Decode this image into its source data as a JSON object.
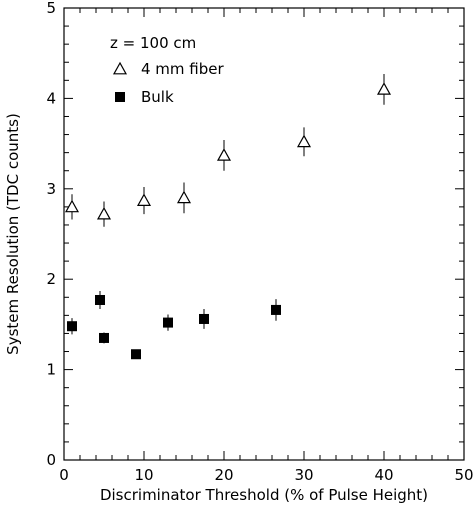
{
  "chart_data": {
    "type": "scatter",
    "xlabel": "Discriminator Threshold (% of Pulse Height)",
    "ylabel": "System Resolution (TDC counts)",
    "xlim": [
      0,
      50
    ],
    "ylim": [
      0,
      5
    ],
    "xticks": [
      0,
      10,
      20,
      30,
      40,
      50
    ],
    "yticks": [
      0,
      1,
      2,
      3,
      4,
      5
    ],
    "grid": false,
    "legend_position": "top-left",
    "annotation": "z = 100 cm",
    "series": [
      {
        "name": "4 mm fiber",
        "marker": "open-triangle",
        "x": [
          1,
          5,
          10,
          15,
          20,
          30,
          40
        ],
        "y": [
          2.8,
          2.72,
          2.87,
          2.9,
          3.37,
          3.52,
          4.1
        ],
        "err": [
          0.14,
          0.14,
          0.15,
          0.17,
          0.17,
          0.16,
          0.17
        ]
      },
      {
        "name": "Bulk",
        "marker": "filled-square",
        "x": [
          1,
          4.5,
          5,
          9,
          13,
          17.5,
          26.5
        ],
        "y": [
          1.48,
          1.77,
          1.35,
          1.17,
          1.52,
          1.56,
          1.66
        ],
        "err": [
          0.09,
          0.1,
          0.06,
          0.04,
          0.09,
          0.11,
          0.12
        ]
      }
    ]
  }
}
